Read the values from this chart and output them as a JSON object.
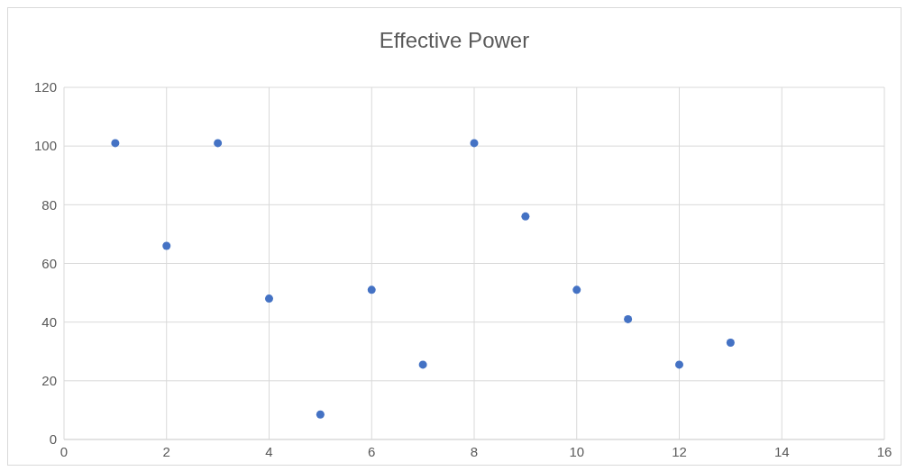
{
  "chart_data": {
    "type": "scatter",
    "title": "Effective Power",
    "x": [
      1,
      2,
      3,
      4,
      5,
      6,
      7,
      8,
      9,
      10,
      11,
      12,
      13
    ],
    "series": [
      {
        "color": "#4472c4",
        "values": [
          101,
          66,
          101,
          48,
          8.5,
          51,
          25.5,
          101,
          76,
          51,
          41,
          25.5,
          33
        ]
      }
    ],
    "xlim": [
      0,
      16
    ],
    "xticks": [
      0,
      2,
      4,
      6,
      8,
      10,
      12,
      14,
      16
    ],
    "ylim": [
      0,
      120
    ],
    "yticks": [
      0,
      20,
      40,
      60,
      80,
      100,
      120
    ],
    "grid": true,
    "marker": "circle"
  }
}
